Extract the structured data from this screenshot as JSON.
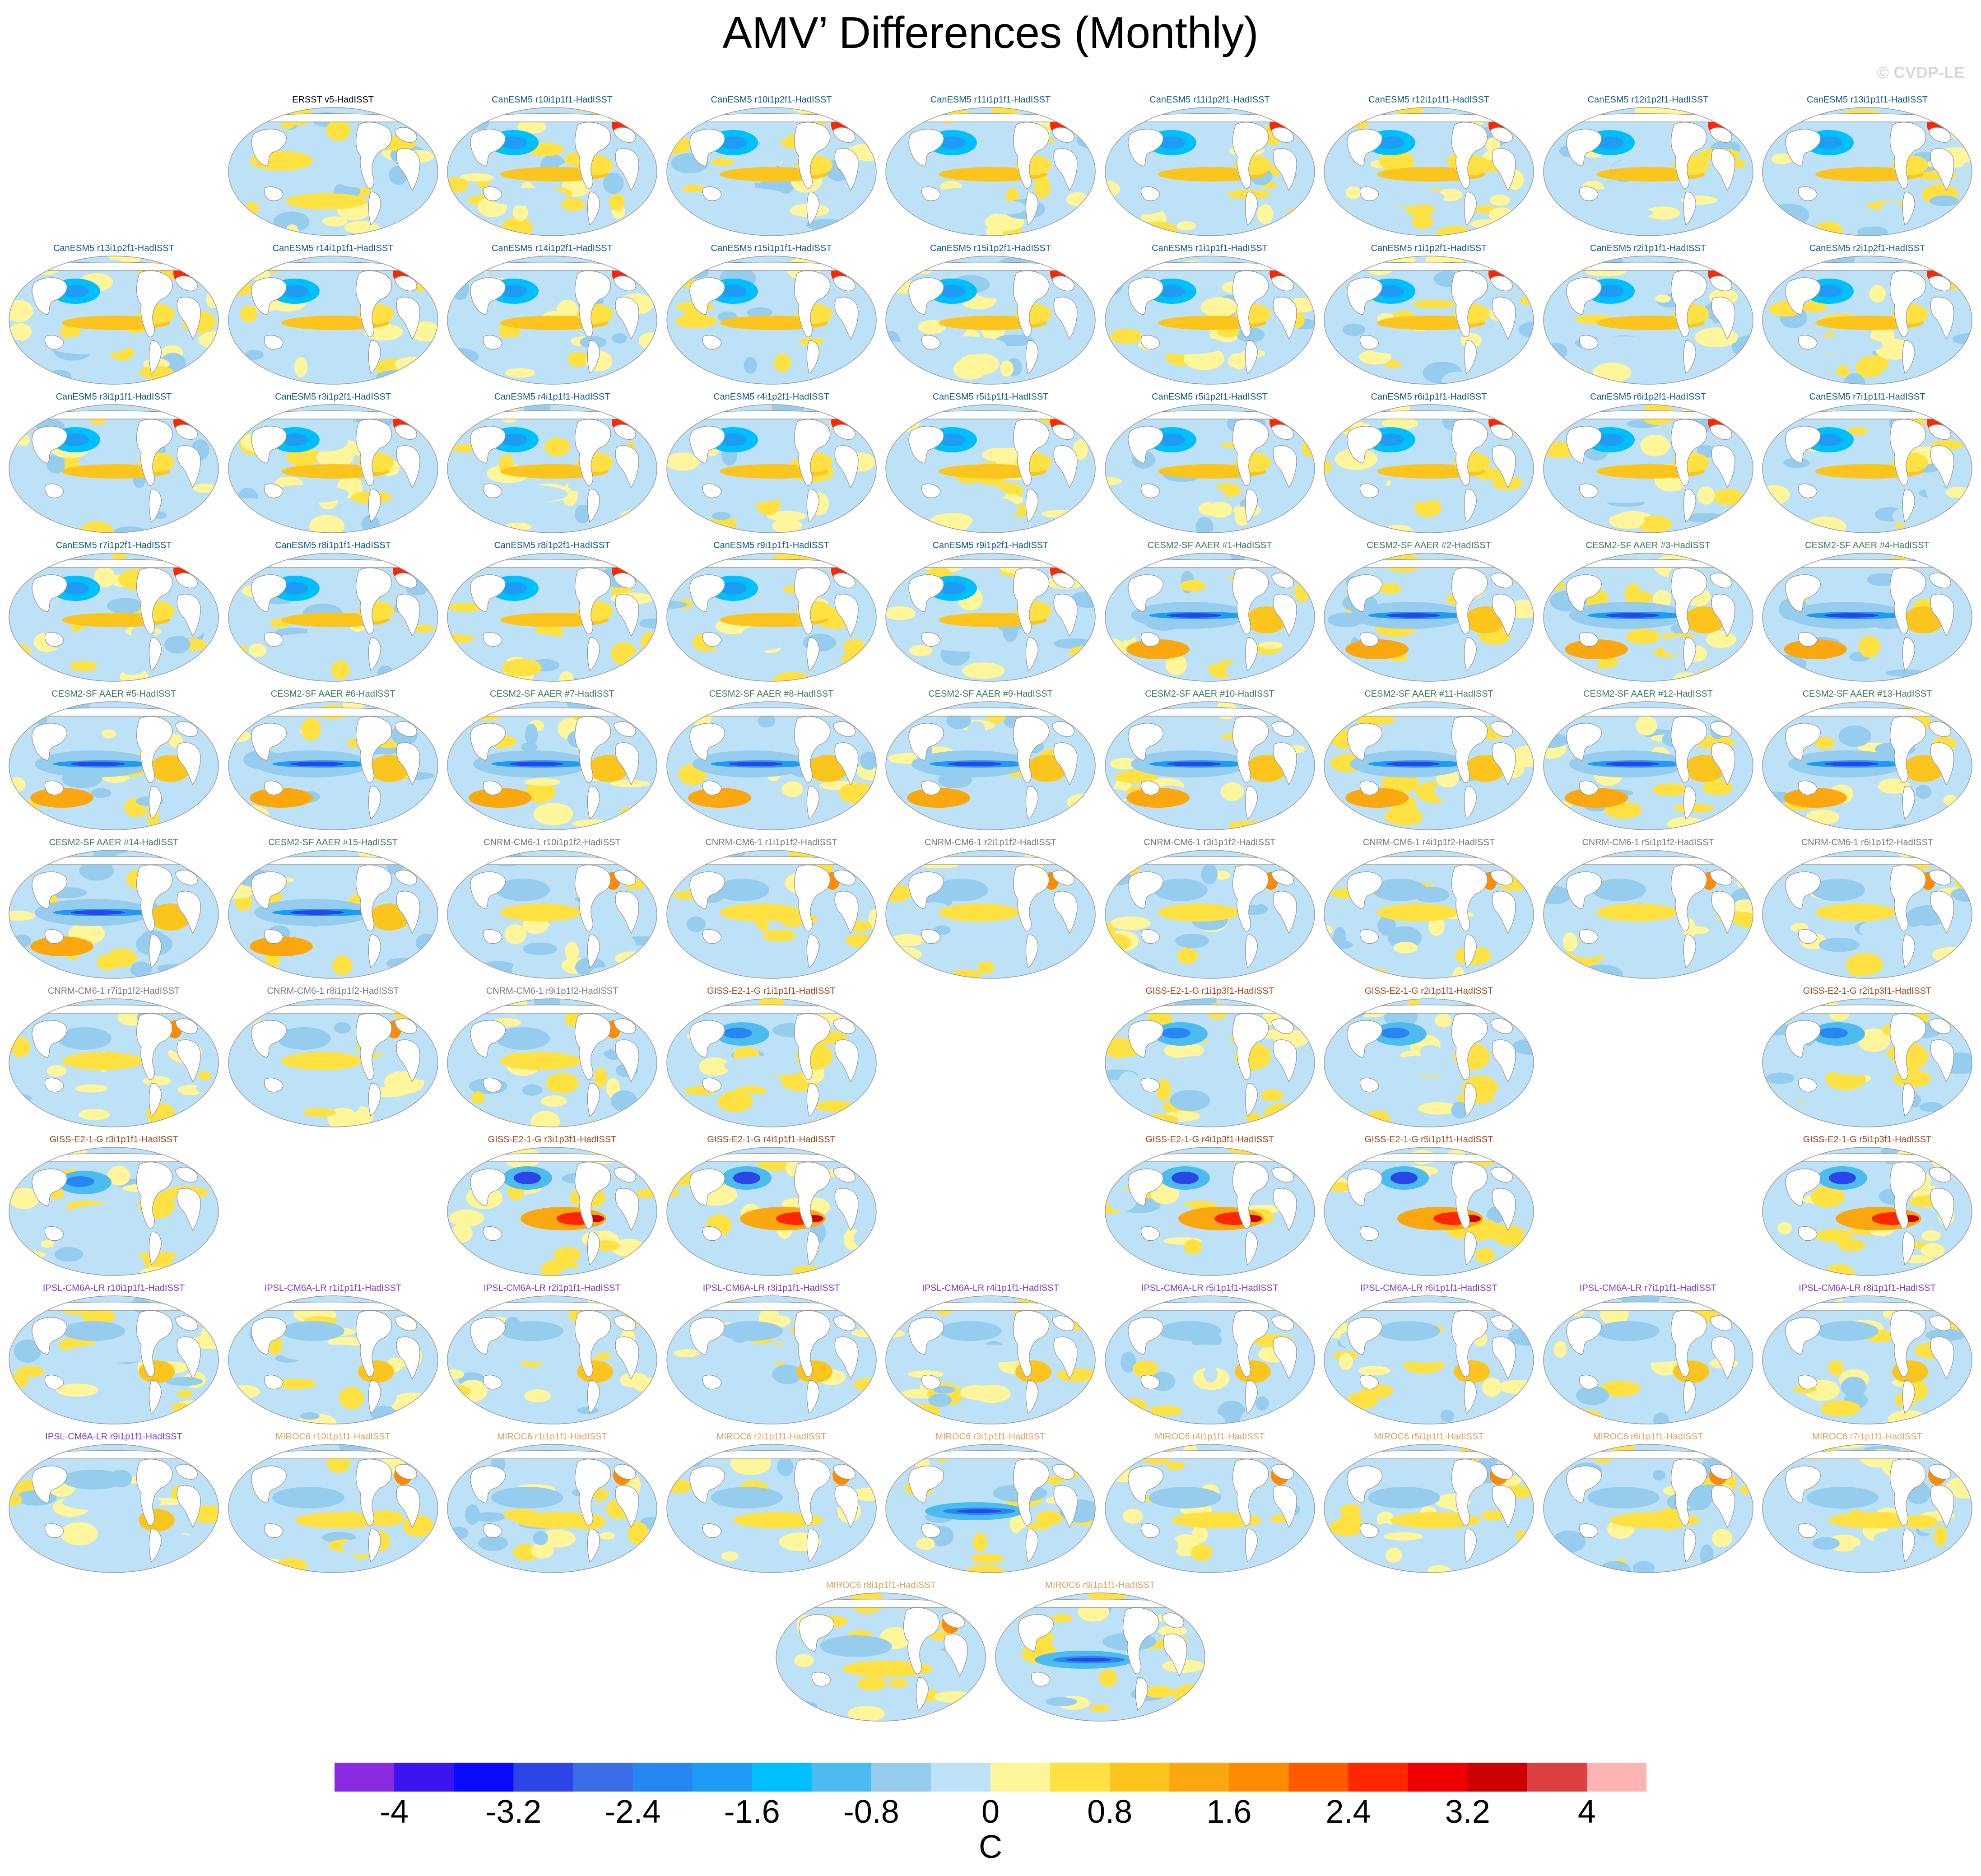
{
  "title": "AMV’ Differences (Monthly)",
  "credit": "© CVDP-LE",
  "colorbar": {
    "units": "C",
    "tick_labels": [
      "-4",
      "-3.2",
      "-2.4",
      "-1.6",
      "-0.8",
      "0",
      "0.8",
      "1.6",
      "2.4",
      "3.2",
      "4"
    ],
    "colors": [
      "#8a2be2",
      "#3c14f0",
      "#0a0aff",
      "#2b45e6",
      "#3a6ee6",
      "#2886f2",
      "#1e9cf5",
      "#00bfff",
      "#4cbcf0",
      "#96cdee",
      "#bde2f7",
      "#fff59a",
      "#ffe142",
      "#fcc51e",
      "#fba70f",
      "#ff8c00",
      "#ff5a00",
      "#ff2600",
      "#ee0000",
      "#cc0000",
      "#dd4040",
      "#ffb4b4"
    ]
  },
  "group_colors": {
    "obs": "#000000",
    "CanESM5": "#0e5a85",
    "CESM2-SF AAER": "#3d7a5a",
    "CNRM-CM6-1": "#7a7a7a",
    "GISS-E2-1-G": "#a0441a",
    "IPSL-CM6A-LR": "#7a3ad0",
    "MIROC6": "#e0a060"
  },
  "panels": [
    {
      "label": "ERSST v5-HadISST",
      "group": "obs",
      "row": 0,
      "col": 1,
      "style": 0
    },
    {
      "label": "CanESM5 r10i1p1f1-HadISST",
      "group": "CanESM5",
      "row": 0,
      "col": 2,
      "style": 1
    },
    {
      "label": "CanESM5 r10i1p2f1-HadISST",
      "group": "CanESM5",
      "row": 0,
      "col": 3,
      "style": 1
    },
    {
      "label": "CanESM5 r11i1p1f1-HadISST",
      "group": "CanESM5",
      "row": 0,
      "col": 4,
      "style": 1
    },
    {
      "label": "CanESM5 r11i1p2f1-HadISST",
      "group": "CanESM5",
      "row": 0,
      "col": 5,
      "style": 1
    },
    {
      "label": "CanESM5 r12i1p1f1-HadISST",
      "group": "CanESM5",
      "row": 0,
      "col": 6,
      "style": 1
    },
    {
      "label": "CanESM5 r12i1p2f1-HadISST",
      "group": "CanESM5",
      "row": 0,
      "col": 7,
      "style": 1
    },
    {
      "label": "CanESM5 r13i1p1f1-HadISST",
      "group": "CanESM5",
      "row": 0,
      "col": 8,
      "style": 1
    },
    {
      "label": "CanESM5 r13i1p2f1-HadISST",
      "group": "CanESM5",
      "row": 1,
      "col": 0,
      "style": 1
    },
    {
      "label": "CanESM5 r14i1p1f1-HadISST",
      "group": "CanESM5",
      "row": 1,
      "col": 1,
      "style": 1
    },
    {
      "label": "CanESM5 r14i1p2f1-HadISST",
      "group": "CanESM5",
      "row": 1,
      "col": 2,
      "style": 1
    },
    {
      "label": "CanESM5 r15i1p1f1-HadISST",
      "group": "CanESM5",
      "row": 1,
      "col": 3,
      "style": 1
    },
    {
      "label": "CanESM5 r15i1p2f1-HadISST",
      "group": "CanESM5",
      "row": 1,
      "col": 4,
      "style": 1
    },
    {
      "label": "CanESM5 r1i1p1f1-HadISST",
      "group": "CanESM5",
      "row": 1,
      "col": 5,
      "style": 1
    },
    {
      "label": "CanESM5 r1i1p2f1-HadISST",
      "group": "CanESM5",
      "row": 1,
      "col": 6,
      "style": 1
    },
    {
      "label": "CanESM5 r2i1p1f1-HadISST",
      "group": "CanESM5",
      "row": 1,
      "col": 7,
      "style": 1
    },
    {
      "label": "CanESM5 r2i1p2f1-HadISST",
      "group": "CanESM5",
      "row": 1,
      "col": 8,
      "style": 1
    },
    {
      "label": "CanESM5 r3i1p1f1-HadISST",
      "group": "CanESM5",
      "row": 2,
      "col": 0,
      "style": 1
    },
    {
      "label": "CanESM5 r3i1p2f1-HadISST",
      "group": "CanESM5",
      "row": 2,
      "col": 1,
      "style": 1
    },
    {
      "label": "CanESM5 r4i1p1f1-HadISST",
      "group": "CanESM5",
      "row": 2,
      "col": 2,
      "style": 1
    },
    {
      "label": "CanESM5 r4i1p2f1-HadISST",
      "group": "CanESM5",
      "row": 2,
      "col": 3,
      "style": 1
    },
    {
      "label": "CanESM5 r5i1p1f1-HadISST",
      "group": "CanESM5",
      "row": 2,
      "col": 4,
      "style": 1
    },
    {
      "label": "CanESM5 r5i1p2f1-HadISST",
      "group": "CanESM5",
      "row": 2,
      "col": 5,
      "style": 1
    },
    {
      "label": "CanESM5 r6i1p1f1-HadISST",
      "group": "CanESM5",
      "row": 2,
      "col": 6,
      "style": 1
    },
    {
      "label": "CanESM5 r6i1p2f1-HadISST",
      "group": "CanESM5",
      "row": 2,
      "col": 7,
      "style": 1
    },
    {
      "label": "CanESM5 r7i1p1f1-HadISST",
      "group": "CanESM5",
      "row": 2,
      "col": 8,
      "style": 1
    },
    {
      "label": "CanESM5 r7i1p2f1-HadISST",
      "group": "CanESM5",
      "row": 3,
      "col": 0,
      "style": 1
    },
    {
      "label": "CanESM5 r8i1p1f1-HadISST",
      "group": "CanESM5",
      "row": 3,
      "col": 1,
      "style": 1
    },
    {
      "label": "CanESM5 r8i1p2f1-HadISST",
      "group": "CanESM5",
      "row": 3,
      "col": 2,
      "style": 1
    },
    {
      "label": "CanESM5 r9i1p1f1-HadISST",
      "group": "CanESM5",
      "row": 3,
      "col": 3,
      "style": 1
    },
    {
      "label": "CanESM5 r9i1p2f1-HadISST",
      "group": "CanESM5",
      "row": 3,
      "col": 4,
      "style": 1
    },
    {
      "label": "CESM2-SF AAER #1-HadISST",
      "group": "CESM2-SF AAER",
      "row": 3,
      "col": 5,
      "style": 2
    },
    {
      "label": "CESM2-SF AAER #2-HadISST",
      "group": "CESM2-SF AAER",
      "row": 3,
      "col": 6,
      "style": 2
    },
    {
      "label": "CESM2-SF AAER #3-HadISST",
      "group": "CESM2-SF AAER",
      "row": 3,
      "col": 7,
      "style": 2
    },
    {
      "label": "CESM2-SF AAER #4-HadISST",
      "group": "CESM2-SF AAER",
      "row": 3,
      "col": 8,
      "style": 2
    },
    {
      "label": "CESM2-SF AAER #5-HadISST",
      "group": "CESM2-SF AAER",
      "row": 4,
      "col": 0,
      "style": 2
    },
    {
      "label": "CESM2-SF AAER #6-HadISST",
      "group": "CESM2-SF AAER",
      "row": 4,
      "col": 1,
      "style": 2
    },
    {
      "label": "CESM2-SF AAER #7-HadISST",
      "group": "CESM2-SF AAER",
      "row": 4,
      "col": 2,
      "style": 2
    },
    {
      "label": "CESM2-SF AAER #8-HadISST",
      "group": "CESM2-SF AAER",
      "row": 4,
      "col": 3,
      "style": 2
    },
    {
      "label": "CESM2-SF AAER #9-HadISST",
      "group": "CESM2-SF AAER",
      "row": 4,
      "col": 4,
      "style": 2
    },
    {
      "label": "CESM2-SF AAER #10-HadISST",
      "group": "CESM2-SF AAER",
      "row": 4,
      "col": 5,
      "style": 2
    },
    {
      "label": "CESM2-SF AAER #11-HadISST",
      "group": "CESM2-SF AAER",
      "row": 4,
      "col": 6,
      "style": 2
    },
    {
      "label": "CESM2-SF AAER #12-HadISST",
      "group": "CESM2-SF AAER",
      "row": 4,
      "col": 7,
      "style": 2
    },
    {
      "label": "CESM2-SF AAER #13-HadISST",
      "group": "CESM2-SF AAER",
      "row": 4,
      "col": 8,
      "style": 2
    },
    {
      "label": "CESM2-SF AAER #14-HadISST",
      "group": "CESM2-SF AAER",
      "row": 5,
      "col": 0,
      "style": 2
    },
    {
      "label": "CESM2-SF AAER #15-HadISST",
      "group": "CESM2-SF AAER",
      "row": 5,
      "col": 1,
      "style": 2
    },
    {
      "label": "CNRM-CM6-1 r10i1p1f2-HadISST",
      "group": "CNRM-CM6-1",
      "row": 5,
      "col": 2,
      "style": 3
    },
    {
      "label": "CNRM-CM6-1 r1i1p1f2-HadISST",
      "group": "CNRM-CM6-1",
      "row": 5,
      "col": 3,
      "style": 3
    },
    {
      "label": "CNRM-CM6-1 r2i1p1f2-HadISST",
      "group": "CNRM-CM6-1",
      "row": 5,
      "col": 4,
      "style": 3
    },
    {
      "label": "CNRM-CM6-1 r3i1p1f2-HadISST",
      "group": "CNRM-CM6-1",
      "row": 5,
      "col": 5,
      "style": 3
    },
    {
      "label": "CNRM-CM6-1 r4i1p1f2-HadISST",
      "group": "CNRM-CM6-1",
      "row": 5,
      "col": 6,
      "style": 3
    },
    {
      "label": "CNRM-CM6-1 r5i1p1f2-HadISST",
      "group": "CNRM-CM6-1",
      "row": 5,
      "col": 7,
      "style": 3
    },
    {
      "label": "CNRM-CM6-1 r6i1p1f2-HadISST",
      "group": "CNRM-CM6-1",
      "row": 5,
      "col": 8,
      "style": 3
    },
    {
      "label": "CNRM-CM6-1 r7i1p1f2-HadISST",
      "group": "CNRM-CM6-1",
      "row": 6,
      "col": 0,
      "style": 3
    },
    {
      "label": "CNRM-CM6-1 r8i1p1f2-HadISST",
      "group": "CNRM-CM6-1",
      "row": 6,
      "col": 1,
      "style": 3
    },
    {
      "label": "CNRM-CM6-1 r9i1p1f2-HadISST",
      "group": "CNRM-CM6-1",
      "row": 6,
      "col": 2,
      "style": 3
    },
    {
      "label": "GISS-E2-1-G r1i1p1f1-HadISST",
      "group": "GISS-E2-1-G",
      "row": 6,
      "col": 3,
      "style": 4
    },
    {
      "label": "GISS-E2-1-G r1i1p3f1-HadISST",
      "group": "GISS-E2-1-G",
      "row": 6,
      "col": 5,
      "style": 4
    },
    {
      "label": "GISS-E2-1-G r2i1p1f1-HadISST",
      "group": "GISS-E2-1-G",
      "row": 6,
      "col": 6,
      "style": 4
    },
    {
      "label": "GISS-E2-1-G r2i1p3f1-HadISST",
      "group": "GISS-E2-1-G",
      "row": 6,
      "col": 8,
      "style": 4
    },
    {
      "label": "GISS-E2-1-G r3i1p1f1-HadISST",
      "group": "GISS-E2-1-G",
      "row": 7,
      "col": 0,
      "style": 4
    },
    {
      "label": "GISS-E2-1-G r3i1p3f1-HadISST",
      "group": "GISS-E2-1-G",
      "row": 7,
      "col": 2,
      "style": 5
    },
    {
      "label": "GISS-E2-1-G r4i1p1f1-HadISST",
      "group": "GISS-E2-1-G",
      "row": 7,
      "col": 3,
      "style": 5
    },
    {
      "label": "GISS-E2-1-G r4i1p3f1-HadISST",
      "group": "GISS-E2-1-G",
      "row": 7,
      "col": 5,
      "style": 5
    },
    {
      "label": "GISS-E2-1-G r5i1p1f1-HadISST",
      "group": "GISS-E2-1-G",
      "row": 7,
      "col": 6,
      "style": 5
    },
    {
      "label": "GISS-E2-1-G r5i1p3f1-HadISST",
      "group": "GISS-E2-1-G",
      "row": 7,
      "col": 8,
      "style": 5
    },
    {
      "label": "IPSL-CM6A-LR r10i1p1f1-HadISST",
      "group": "IPSL-CM6A-LR",
      "row": 8,
      "col": 0,
      "style": 6
    },
    {
      "label": "IPSL-CM6A-LR r1i1p1f1-HadISST",
      "group": "IPSL-CM6A-LR",
      "row": 8,
      "col": 1,
      "style": 6
    },
    {
      "label": "IPSL-CM6A-LR r2i1p1f1-HadISST",
      "group": "IPSL-CM6A-LR",
      "row": 8,
      "col": 2,
      "style": 6
    },
    {
      "label": "IPSL-CM6A-LR r3i1p1f1-HadISST",
      "group": "IPSL-CM6A-LR",
      "row": 8,
      "col": 3,
      "style": 6
    },
    {
      "label": "IPSL-CM6A-LR r4i1p1f1-HadISST",
      "group": "IPSL-CM6A-LR",
      "row": 8,
      "col": 4,
      "style": 6
    },
    {
      "label": "IPSL-CM6A-LR r5i1p1f1-HadISST",
      "group": "IPSL-CM6A-LR",
      "row": 8,
      "col": 5,
      "style": 6
    },
    {
      "label": "IPSL-CM6A-LR r6i1p1f1-HadISST",
      "group": "IPSL-CM6A-LR",
      "row": 8,
      "col": 6,
      "style": 6
    },
    {
      "label": "IPSL-CM6A-LR r7i1p1f1-HadISST",
      "group": "IPSL-CM6A-LR",
      "row": 8,
      "col": 7,
      "style": 6
    },
    {
      "label": "IPSL-CM6A-LR r8i1p1f1-HadISST",
      "group": "IPSL-CM6A-LR",
      "row": 8,
      "col": 8,
      "style": 6
    },
    {
      "label": "IPSL-CM6A-LR r9i1p1f1-HadISST",
      "group": "IPSL-CM6A-LR",
      "row": 9,
      "col": 0,
      "style": 6
    },
    {
      "label": "MIROC6 r10i1p1f1-HadISST",
      "group": "MIROC6",
      "row": 9,
      "col": 1,
      "style": 7
    },
    {
      "label": "MIROC6 r1i1p1f1-HadISST",
      "group": "MIROC6",
      "row": 9,
      "col": 2,
      "style": 7
    },
    {
      "label": "MIROC6 r2i1p1f1-HadISST",
      "group": "MIROC6",
      "row": 9,
      "col": 3,
      "style": 7
    },
    {
      "label": "MIROC6 r3i1p1f1-HadISST",
      "group": "MIROC6",
      "row": 9,
      "col": 4,
      "style": 8
    },
    {
      "label": "MIROC6 r4i1p1f1-HadISST",
      "group": "MIROC6",
      "row": 9,
      "col": 5,
      "style": 7
    },
    {
      "label": "MIROC6 r5i1p1f1-HadISST",
      "group": "MIROC6",
      "row": 9,
      "col": 6,
      "style": 7
    },
    {
      "label": "MIROC6 r6i1p1f1-HadISST",
      "group": "MIROC6",
      "row": 9,
      "col": 7,
      "style": 7
    },
    {
      "label": "MIROC6 r7i1p1f1-HadISST",
      "group": "MIROC6",
      "row": 9,
      "col": 8,
      "style": 7
    },
    {
      "label": "MIROC6 r8i1p1f1-HadISST",
      "group": "MIROC6",
      "row": 10,
      "col": 3.5,
      "style": 7
    },
    {
      "label": "MIROC6 r9i1p1f1-HadISST",
      "group": "MIROC6",
      "row": 10,
      "col": 4.5,
      "style": 8
    }
  ]
}
